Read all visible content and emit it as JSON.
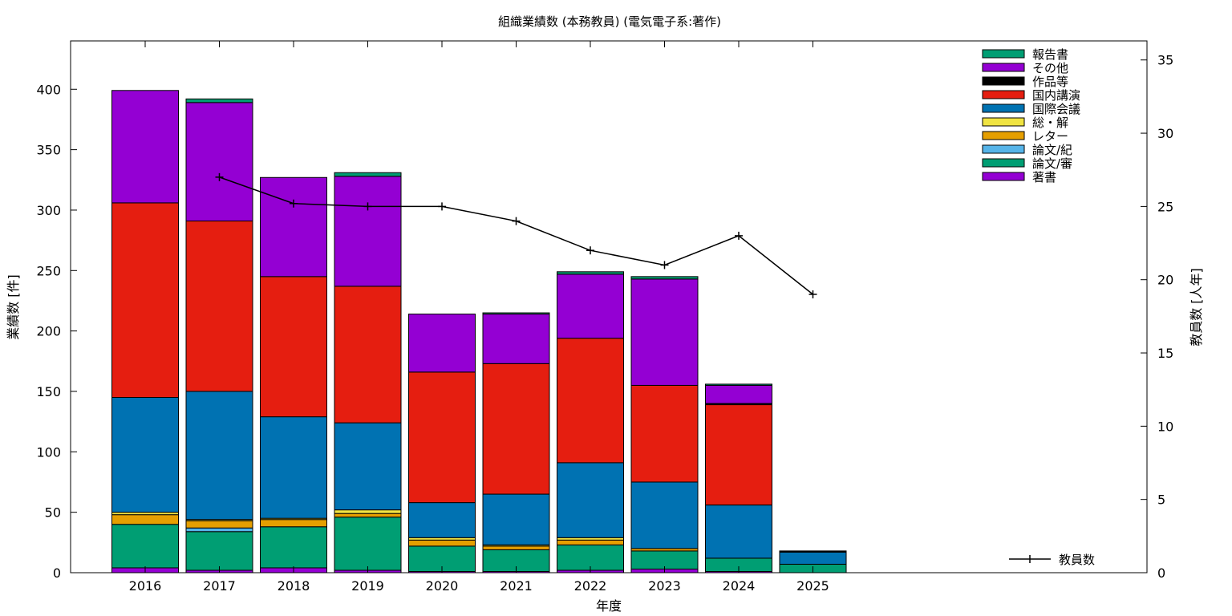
{
  "chart_data": {
    "type": "bar",
    "stacked": true,
    "title": "組織業績数 (本務教員) (電気電子系:著作)",
    "xlabel": "年度",
    "ylabel": "業績数 [件]",
    "y2label": "教員数 [人年]",
    "ylim": [
      0,
      440
    ],
    "y2lim": [
      0,
      36.3
    ],
    "yticks": [
      0,
      50,
      100,
      150,
      200,
      250,
      300,
      350,
      400
    ],
    "y2ticks": [
      0,
      5,
      10,
      15,
      20,
      25,
      30,
      35
    ],
    "legend_position": "top-right",
    "grid": false,
    "categories": [
      "2016",
      "2017",
      "2018",
      "2019",
      "2020",
      "2021",
      "2022",
      "2023",
      "2024",
      "2025"
    ],
    "series": [
      {
        "name": "著書",
        "color": "#9400d3",
        "values": [
          4,
          2,
          4,
          2,
          1,
          1,
          2,
          3,
          1,
          0
        ]
      },
      {
        "name": "論文/審",
        "color": "#009e73",
        "values": [
          36,
          32,
          34,
          44,
          21,
          18,
          21,
          15,
          11,
          7
        ]
      },
      {
        "name": "論文/紀",
        "color": "#56b4e9",
        "values": [
          0,
          3,
          0,
          0,
          0,
          0,
          0,
          0,
          0,
          0
        ]
      },
      {
        "name": "レター",
        "color": "#e69f00",
        "values": [
          8,
          6,
          6,
          3,
          5,
          3,
          4,
          2,
          0,
          0
        ]
      },
      {
        "name": "総・解",
        "color": "#f0e442",
        "values": [
          2,
          1,
          1,
          3,
          2,
          1,
          2,
          0,
          0,
          0
        ]
      },
      {
        "name": "国際会議",
        "color": "#0072b2",
        "values": [
          95,
          106,
          84,
          72,
          29,
          42,
          62,
          55,
          44,
          10
        ]
      },
      {
        "name": "国内講演",
        "color": "#e51e10",
        "values": [
          161,
          141,
          116,
          113,
          108,
          108,
          103,
          80,
          83,
          0
        ]
      },
      {
        "name": "作品等",
        "color": "#000000",
        "values": [
          0,
          0,
          0,
          0,
          0,
          0,
          0,
          0,
          1,
          1
        ]
      },
      {
        "name": "その他",
        "color": "#9400d3",
        "values": [
          93,
          98,
          82,
          91,
          48,
          41,
          53,
          88,
          15,
          0
        ]
      },
      {
        "name": "報告書",
        "color": "#009e73",
        "values": [
          0,
          3,
          0,
          3,
          0,
          1,
          2,
          2,
          1,
          0
        ]
      }
    ],
    "line_series": {
      "name": "教員数",
      "axis": "y2",
      "color": "#000000",
      "x": [
        "2017",
        "2018",
        "2019",
        "2020",
        "2021",
        "2022",
        "2023",
        "2024",
        "2025"
      ],
      "values": [
        27.0,
        25.2,
        25.0,
        25.0,
        24.0,
        22.0,
        21.0,
        23.0,
        19.0
      ]
    }
  }
}
